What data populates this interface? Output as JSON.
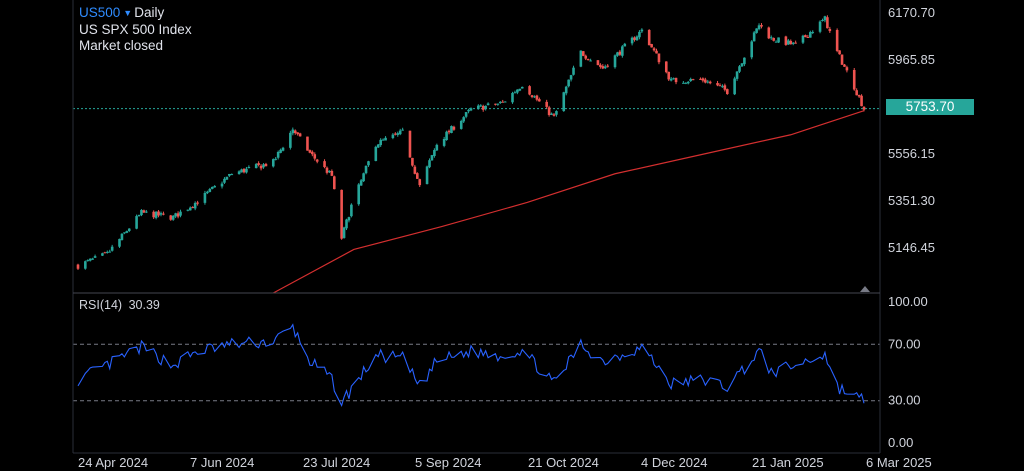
{
  "header": {
    "symbol": "US500",
    "interval": "Daily",
    "name": "US SPX 500 Index",
    "status": "Market closed"
  },
  "price_tag": "5753.70",
  "rsi": {
    "label": "RSI(14)",
    "value": "30.39"
  },
  "colors": {
    "up": "#26a69a",
    "down": "#ef5350",
    "ma": "#d32f2f",
    "rsi": "#2962ff",
    "accent": "#2f8cff"
  },
  "chart_data": [
    {
      "type": "candlestick",
      "title": "US500 Daily",
      "ylim": [
        5050,
        6220
      ],
      "y_ticks": [
        "6170.70",
        "5965.85",
        "5556.15",
        "5351.30",
        "5146.45"
      ],
      "x_ticks": [
        "24 Apr 2024",
        "7 Jun 2024",
        "23 Jul 2024",
        "5 Sep 2024",
        "21 Oct 2024",
        "4 Dec 2024",
        "21 Jan 2025",
        "6 Mar 2025"
      ],
      "last_price": 5753.7,
      "moving_average": [
        {
          "x": "2024-07-08",
          "y": 5050
        },
        {
          "x": "2024-08-10",
          "y": 5140
        },
        {
          "x": "2024-09-15",
          "y": 5240
        },
        {
          "x": "2024-10-20",
          "y": 5345
        },
        {
          "x": "2024-11-25",
          "y": 5470
        },
        {
          "x": "2024-12-31",
          "y": 5555
        },
        {
          "x": "2025-02-05",
          "y": 5640
        },
        {
          "x": "2025-03-07",
          "y": 5745
        }
      ],
      "close_path": [
        {
          "x": "2024-04-19",
          "y": 5070
        },
        {
          "x": "2024-05-01",
          "y": 5120
        },
        {
          "x": "2024-05-15",
          "y": 5300
        },
        {
          "x": "2024-05-28",
          "y": 5280
        },
        {
          "x": "2024-06-07",
          "y": 5350
        },
        {
          "x": "2024-06-21",
          "y": 5470
        },
        {
          "x": "2024-07-08",
          "y": 5520
        },
        {
          "x": "2024-07-16",
          "y": 5665
        },
        {
          "x": "2024-07-23",
          "y": 5560
        },
        {
          "x": "2024-08-01",
          "y": 5460
        },
        {
          "x": "2024-08-05",
          "y": 5190
        },
        {
          "x": "2024-08-09",
          "y": 5330
        },
        {
          "x": "2024-08-19",
          "y": 5600
        },
        {
          "x": "2024-08-30",
          "y": 5650
        },
        {
          "x": "2024-09-06",
          "y": 5415
        },
        {
          "x": "2024-09-13",
          "y": 5600
        },
        {
          "x": "2024-09-27",
          "y": 5750
        },
        {
          "x": "2024-10-10",
          "y": 5780
        },
        {
          "x": "2024-10-18",
          "y": 5860
        },
        {
          "x": "2024-10-31",
          "y": 5715
        },
        {
          "x": "2024-11-11",
          "y": 6000
        },
        {
          "x": "2024-11-20",
          "y": 5930
        },
        {
          "x": "2024-12-06",
          "y": 6095
        },
        {
          "x": "2024-12-18",
          "y": 5875
        },
        {
          "x": "2024-12-31",
          "y": 5880
        },
        {
          "x": "2025-01-10",
          "y": 5830
        },
        {
          "x": "2025-01-23",
          "y": 6120
        },
        {
          "x": "2025-01-28",
          "y": 6060
        },
        {
          "x": "2025-02-07",
          "y": 6030
        },
        {
          "x": "2025-02-19",
          "y": 6145
        },
        {
          "x": "2025-02-24",
          "y": 6000
        },
        {
          "x": "2025-03-03",
          "y": 5850
        },
        {
          "x": "2025-03-07",
          "y": 5753.7
        }
      ]
    },
    {
      "type": "line",
      "title": "RSI(14)",
      "ylim": [
        0,
        100
      ],
      "y_ticks": [
        "100.00",
        "70.00",
        "30.00",
        "0.00"
      ],
      "levels": [
        70,
        30
      ],
      "last_value": 30.39,
      "series": [
        {
          "values": [
            {
              "x": "2024-04-19",
              "y": 45
            },
            {
              "x": "2024-05-01",
              "y": 55
            },
            {
              "x": "2024-05-15",
              "y": 68
            },
            {
              "x": "2024-05-28",
              "y": 55
            },
            {
              "x": "2024-06-07",
              "y": 65
            },
            {
              "x": "2024-06-21",
              "y": 70
            },
            {
              "x": "2024-07-08",
              "y": 72
            },
            {
              "x": "2024-07-16",
              "y": 82
            },
            {
              "x": "2024-07-23",
              "y": 58
            },
            {
              "x": "2024-08-01",
              "y": 45
            },
            {
              "x": "2024-08-05",
              "y": 29
            },
            {
              "x": "2024-08-09",
              "y": 38
            },
            {
              "x": "2024-08-19",
              "y": 62
            },
            {
              "x": "2024-08-30",
              "y": 60
            },
            {
              "x": "2024-09-06",
              "y": 40
            },
            {
              "x": "2024-09-13",
              "y": 58
            },
            {
              "x": "2024-09-27",
              "y": 65
            },
            {
              "x": "2024-10-10",
              "y": 62
            },
            {
              "x": "2024-10-18",
              "y": 66
            },
            {
              "x": "2024-10-31",
              "y": 42
            },
            {
              "x": "2024-11-11",
              "y": 70
            },
            {
              "x": "2024-11-20",
              "y": 58
            },
            {
              "x": "2024-12-06",
              "y": 68
            },
            {
              "x": "2024-12-18",
              "y": 42
            },
            {
              "x": "2024-12-31",
              "y": 45
            },
            {
              "x": "2025-01-10",
              "y": 40
            },
            {
              "x": "2025-01-23",
              "y": 65
            },
            {
              "x": "2025-01-28",
              "y": 50
            },
            {
              "x": "2025-02-07",
              "y": 55
            },
            {
              "x": "2025-02-19",
              "y": 63
            },
            {
              "x": "2025-02-24",
              "y": 40
            },
            {
              "x": "2025-03-03",
              "y": 33
            },
            {
              "x": "2025-03-07",
              "y": 30.39
            }
          ]
        }
      ]
    }
  ]
}
